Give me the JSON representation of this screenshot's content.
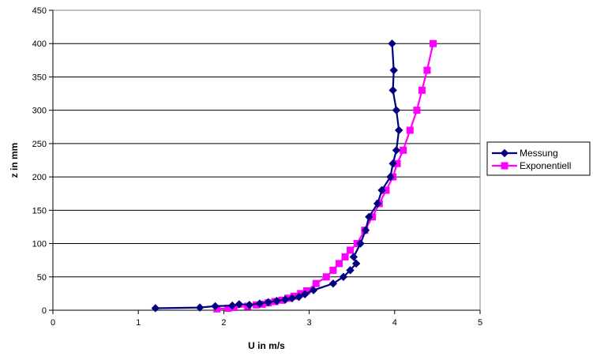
{
  "chart_data": {
    "type": "line",
    "xlabel": "U in m/s",
    "ylabel": "z in mm",
    "xlim": [
      0,
      5
    ],
    "ylim": [
      0,
      450
    ],
    "x_ticks": [
      0,
      1,
      2,
      3,
      4,
      5
    ],
    "y_ticks": [
      0,
      50,
      100,
      150,
      200,
      250,
      300,
      350,
      400,
      450
    ],
    "grid": "horizontal",
    "legend_position": "right",
    "series": [
      {
        "name": "Messung",
        "color": "#000080",
        "marker": "diamond",
        "points": [
          [
            1.2,
            3
          ],
          [
            1.72,
            4
          ],
          [
            1.9,
            6
          ],
          [
            2.1,
            7
          ],
          [
            2.18,
            9
          ],
          [
            2.3,
            8
          ],
          [
            2.42,
            10
          ],
          [
            2.52,
            12
          ],
          [
            2.62,
            14
          ],
          [
            2.72,
            16
          ],
          [
            2.8,
            18
          ],
          [
            2.88,
            20
          ],
          [
            2.95,
            24
          ],
          [
            3.05,
            30
          ],
          [
            3.28,
            40
          ],
          [
            3.4,
            50
          ],
          [
            3.48,
            60
          ],
          [
            3.55,
            70
          ],
          [
            3.52,
            80
          ],
          [
            3.6,
            100
          ],
          [
            3.66,
            120
          ],
          [
            3.7,
            140
          ],
          [
            3.8,
            160
          ],
          [
            3.85,
            180
          ],
          [
            3.95,
            200
          ],
          [
            3.98,
            220
          ],
          [
            4.02,
            240
          ],
          [
            4.05,
            270
          ],
          [
            4.02,
            300
          ],
          [
            3.98,
            330
          ],
          [
            3.99,
            360
          ],
          [
            3.97,
            400
          ]
        ]
      },
      {
        "name": "Exponentiell",
        "color": "#ff00ff",
        "marker": "square",
        "points": [
          [
            1.92,
            2
          ],
          [
            2.05,
            3
          ],
          [
            2.12,
            4
          ],
          [
            2.28,
            6
          ],
          [
            2.38,
            8
          ],
          [
            2.45,
            9
          ],
          [
            2.52,
            11
          ],
          [
            2.6,
            13
          ],
          [
            2.68,
            15
          ],
          [
            2.75,
            18
          ],
          [
            2.82,
            21
          ],
          [
            2.9,
            25
          ],
          [
            2.97,
            29
          ],
          [
            3.08,
            40
          ],
          [
            3.2,
            50
          ],
          [
            3.28,
            60
          ],
          [
            3.35,
            70
          ],
          [
            3.42,
            80
          ],
          [
            3.48,
            90
          ],
          [
            3.56,
            100
          ],
          [
            3.65,
            120
          ],
          [
            3.74,
            140
          ],
          [
            3.82,
            160
          ],
          [
            3.9,
            180
          ],
          [
            3.98,
            200
          ],
          [
            4.03,
            220
          ],
          [
            4.1,
            240
          ],
          [
            4.18,
            270
          ],
          [
            4.26,
            300
          ],
          [
            4.32,
            330
          ],
          [
            4.38,
            360
          ],
          [
            4.45,
            400
          ]
        ]
      }
    ]
  }
}
